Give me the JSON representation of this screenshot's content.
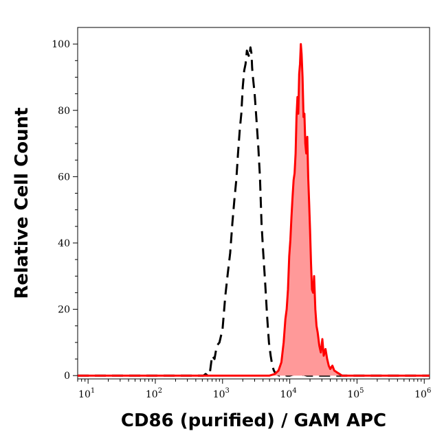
{
  "chart_data": {
    "type": "area",
    "xlabel": "CD86 (purified) / GAM APC",
    "ylabel": "Relative Cell Count",
    "x_scale": "log",
    "xlim": [
      7,
      1200000
    ],
    "ylim": [
      -1,
      105
    ],
    "x_ticks": [
      {
        "value": 10,
        "base": "10",
        "exp": "1"
      },
      {
        "value": 100,
        "base": "10",
        "exp": "2"
      },
      {
        "value": 1000,
        "base": "10",
        "exp": "3"
      },
      {
        "value": 10000,
        "base": "10",
        "exp": "4"
      },
      {
        "value": 100000,
        "base": "10",
        "exp": "5"
      },
      {
        "value": 1000000,
        "base": "10",
        "exp": "6"
      }
    ],
    "y_ticks": [
      "0",
      "20",
      "40",
      "60",
      "80",
      "100"
    ],
    "series": [
      {
        "style": "dashed-outline",
        "color": "#000000",
        "x": [
          7,
          400,
          470,
          520,
          560,
          600,
          640,
          700,
          760,
          820,
          900,
          1000,
          1100,
          1200,
          1300,
          1400,
          1500,
          1600,
          1700,
          1800,
          1900,
          2000,
          2100,
          2200,
          2300,
          2400,
          2500,
          2600,
          2650,
          2700,
          2750,
          2800,
          2900,
          3000,
          3200,
          3400,
          3600,
          3800,
          4000,
          4300,
          4600,
          4900,
          5200,
          5500,
          5800,
          6200,
          7000,
          8000,
          9000,
          10000,
          12000,
          14000,
          16000,
          18000,
          20000,
          1200000
        ],
        "values": [
          0,
          0,
          0,
          0,
          0.5,
          0,
          0,
          6,
          5,
          9,
          10,
          14,
          24,
          31,
          37,
          46,
          53,
          59,
          67,
          74,
          79,
          87,
          92,
          94,
          98,
          97,
          96,
          99,
          98,
          97,
          93,
          91,
          88,
          85,
          77,
          69,
          60,
          46,
          38,
          28,
          18,
          10,
          6,
          3,
          1.5,
          0.5,
          0,
          0.3,
          0,
          0,
          0.5,
          0,
          0.3,
          0,
          0,
          0
        ]
      },
      {
        "style": "filled",
        "color": "#ff0000",
        "fill": "#ff9999",
        "x": [
          7,
          5000,
          6000,
          6800,
          7500,
          8100,
          8600,
          9000,
          9400,
          9800,
          10200,
          10600,
          11000,
          11400,
          11800,
          12200,
          12600,
          13000,
          13400,
          13800,
          14200,
          14600,
          15000,
          15500,
          16000,
          16500,
          17000,
          17600,
          18200,
          18800,
          19400,
          20000,
          20700,
          21400,
          22200,
          23000,
          24000,
          25000,
          26000,
          27500,
          29000,
          30500,
          32000,
          34000,
          36000,
          38000,
          40000,
          43000,
          46000,
          50000,
          55000,
          60000,
          70000,
          1200000
        ],
        "values": [
          0,
          0,
          0.5,
          1.5,
          4,
          10,
          17,
          20,
          26,
          36,
          41,
          48,
          54,
          59,
          61,
          67,
          78,
          84,
          79,
          91,
          94,
          100,
          97,
          90,
          78,
          79,
          70,
          67,
          72,
          60,
          52,
          44,
          34,
          26,
          25,
          30,
          20,
          15,
          13,
          9,
          7,
          11,
          6,
          8,
          5,
          3,
          2,
          3,
          1.5,
          1,
          0.5,
          0,
          0,
          0
        ]
      }
    ]
  }
}
